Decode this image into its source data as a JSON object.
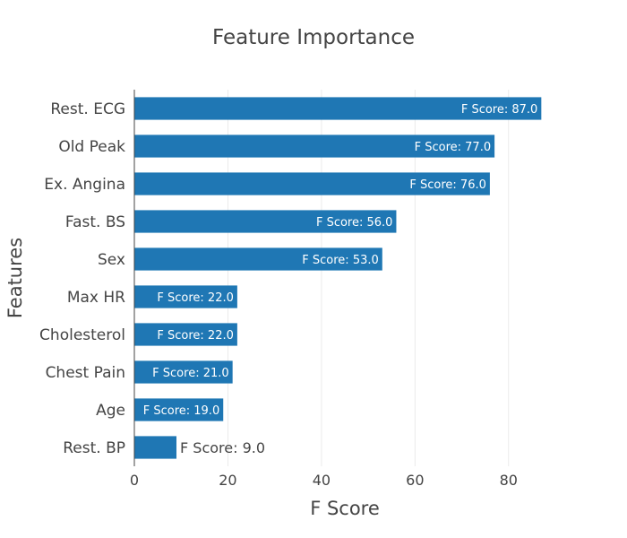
{
  "chart_data": {
    "type": "bar",
    "orientation": "horizontal",
    "title": "Feature Importance",
    "xlabel": "F Score",
    "ylabel": "Features",
    "xlim": [
      0,
      90
    ],
    "xticks": [
      0,
      20,
      40,
      60,
      80
    ],
    "grid": true,
    "bar_color": "#1f77b4",
    "categories": [
      "Rest. ECG",
      "Old Peak",
      "Ex. Angina",
      "Fast. BS",
      "Sex",
      "Max HR",
      "Cholesterol",
      "Chest Pain",
      "Age",
      "Rest. BP"
    ],
    "values": [
      87.0,
      77.0,
      76.0,
      56.0,
      53.0,
      22.0,
      22.0,
      21.0,
      19.0,
      9.0
    ],
    "data_labels": [
      "F Score: 87.0",
      "F Score: 77.0",
      "F Score: 76.0",
      "F Score: 56.0",
      "F Score: 53.0",
      "F Score: 22.0",
      "F Score: 22.0",
      "F Score: 21.0",
      "F Score: 19.0",
      "F Score: 9.0"
    ]
  }
}
